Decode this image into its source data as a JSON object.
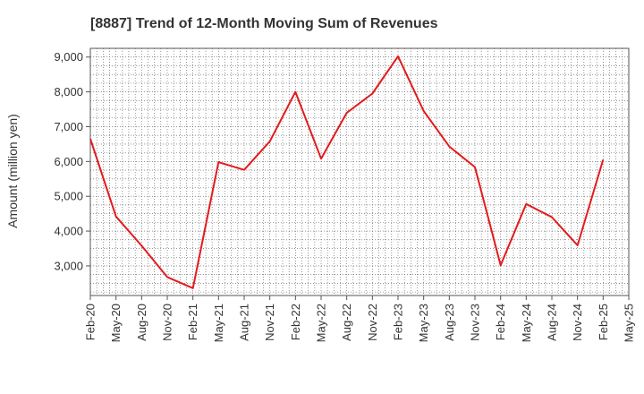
{
  "chart_data": {
    "type": "line",
    "title": "[8887]  Trend of 12-Month Moving Sum of Revenues",
    "xlabel": "",
    "ylabel": "Amount (million yen)",
    "categories": [
      "Feb-20",
      "May-20",
      "Aug-20",
      "Nov-20",
      "Feb-21",
      "May-21",
      "Aug-21",
      "Nov-21",
      "Feb-22",
      "May-22",
      "Aug-22",
      "Nov-22",
      "Feb-23",
      "May-23",
      "Aug-23",
      "Nov-23",
      "Feb-24",
      "May-24",
      "Aug-24",
      "Nov-24",
      "Feb-25",
      "May-25"
    ],
    "values": [
      6650,
      4420,
      3580,
      2680,
      2360,
      5980,
      5760,
      6580,
      8000,
      6080,
      7400,
      7950,
      9020,
      7450,
      6430,
      5840,
      3020,
      4780,
      4400,
      3590,
      6050,
      null
    ],
    "ylim": [
      2150,
      9250
    ],
    "yticks": [
      3000,
      4000,
      5000,
      6000,
      7000,
      8000,
      9000
    ],
    "ytick_labels": [
      "3,000",
      "4,000",
      "5,000",
      "6,000",
      "7,000",
      "8,000",
      "9,000"
    ],
    "grid": true,
    "minor_x_grid_per_interval": 4,
    "minor_y_grid_per_interval": 4,
    "line_color": "#e31a1c",
    "grid_color": "#555555",
    "axis_color": "#555555"
  }
}
